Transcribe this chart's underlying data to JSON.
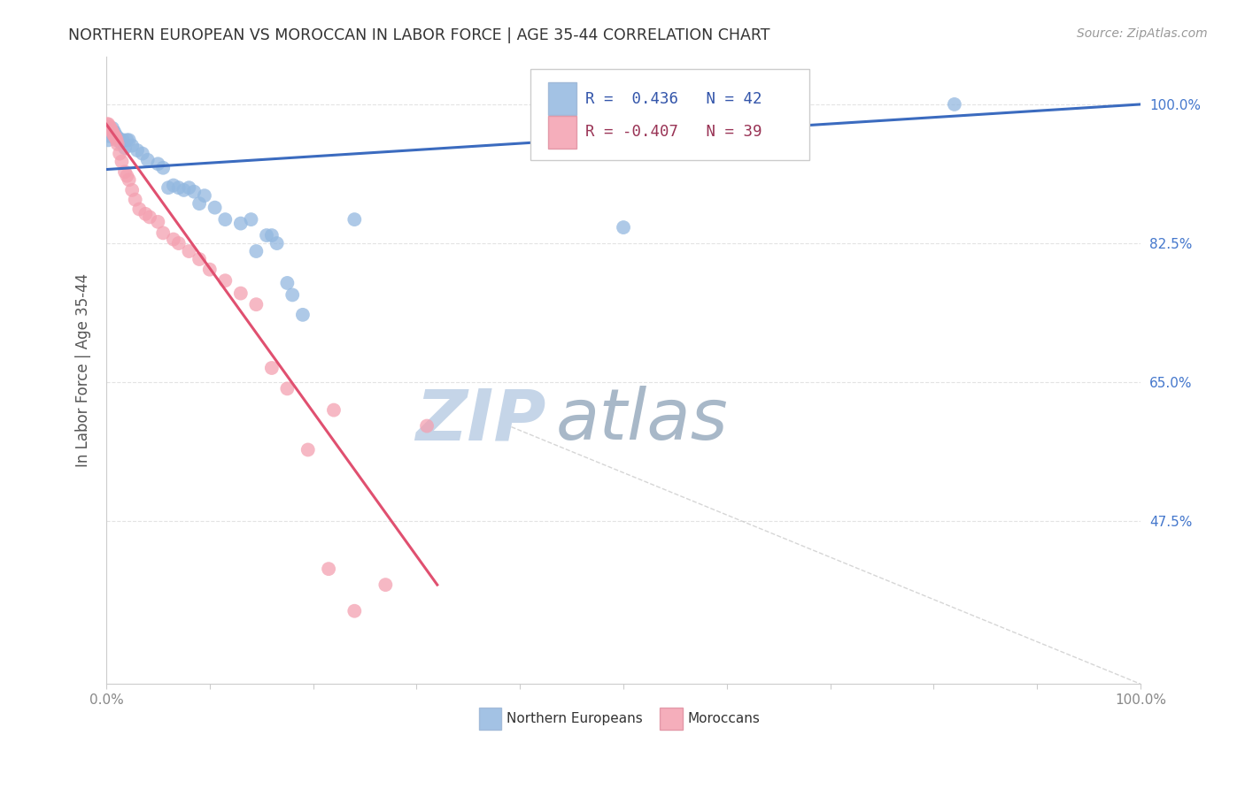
{
  "title": "NORTHERN EUROPEAN VS MOROCCAN IN LABOR FORCE | AGE 35-44 CORRELATION CHART",
  "source_text": "Source: ZipAtlas.com",
  "ylabel": "In Labor Force | Age 35-44",
  "r_blue": 0.436,
  "n_blue": 42,
  "r_pink": -0.407,
  "n_pink": 39,
  "blue_color": "#93B8E0",
  "pink_color": "#F4A0B0",
  "blue_line_color": "#3B6BBF",
  "pink_line_color": "#E05070",
  "axis_label_color": "#555555",
  "tick_color_right": "#4477CC",
  "grid_color": "#DDDDDD",
  "watermark_zip_color": "#C8D8EE",
  "watermark_atlas_color": "#AABBCC",
  "xlim": [
    0.0,
    1.0
  ],
  "ylim": [
    0.27,
    1.06
  ],
  "yticks": [
    0.475,
    0.65,
    0.825,
    1.0
  ],
  "ytick_labels": [
    "47.5%",
    "65.0%",
    "82.5%",
    "100.0%"
  ],
  "xtick_labels": [
    "0.0%",
    "",
    "",
    "",
    "",
    "",
    "",
    "",
    "",
    "",
    "100.0%"
  ],
  "blue_trend_x": [
    0.0,
    1.0
  ],
  "blue_trend_y": [
    0.918,
    1.0
  ],
  "pink_trend_x": [
    0.0,
    0.32
  ],
  "pink_trend_y": [
    0.975,
    0.395
  ],
  "dash_line_x": [
    0.38,
    1.0
  ],
  "dash_line_y": [
    0.6,
    0.27
  ],
  "blue_x": [
    0.002,
    0.003,
    0.004,
    0.005,
    0.006,
    0.007,
    0.008,
    0.01,
    0.012,
    0.014,
    0.016,
    0.018,
    0.02,
    0.022,
    0.025,
    0.03,
    0.035,
    0.04,
    0.05,
    0.055,
    0.06,
    0.065,
    0.07,
    0.075,
    0.08,
    0.085,
    0.09,
    0.095,
    0.105,
    0.115,
    0.13,
    0.14,
    0.145,
    0.155,
    0.16,
    0.165,
    0.175,
    0.18,
    0.19,
    0.24,
    0.5,
    0.82
  ],
  "blue_y": [
    0.955,
    0.96,
    0.965,
    0.965,
    0.97,
    0.965,
    0.965,
    0.96,
    0.957,
    0.952,
    0.955,
    0.945,
    0.955,
    0.955,
    0.948,
    0.942,
    0.938,
    0.93,
    0.925,
    0.92,
    0.895,
    0.898,
    0.895,
    0.892,
    0.895,
    0.89,
    0.875,
    0.885,
    0.87,
    0.855,
    0.85,
    0.855,
    0.815,
    0.835,
    0.835,
    0.825,
    0.775,
    0.76,
    0.735,
    0.855,
    0.845,
    1.0
  ],
  "pink_x": [
    0.001,
    0.002,
    0.003,
    0.004,
    0.005,
    0.006,
    0.007,
    0.008,
    0.009,
    0.01,
    0.011,
    0.013,
    0.015,
    0.018,
    0.02,
    0.022,
    0.025,
    0.028,
    0.032,
    0.038,
    0.042,
    0.05,
    0.055,
    0.065,
    0.07,
    0.08,
    0.09,
    0.1,
    0.115,
    0.13,
    0.145,
    0.16,
    0.175,
    0.195,
    0.215,
    0.24,
    0.27,
    0.31,
    0.22
  ],
  "pink_y": [
    0.975,
    0.975,
    0.972,
    0.97,
    0.968,
    0.965,
    0.962,
    0.96,
    0.958,
    0.955,
    0.95,
    0.938,
    0.928,
    0.915,
    0.91,
    0.905,
    0.892,
    0.88,
    0.868,
    0.862,
    0.858,
    0.852,
    0.838,
    0.83,
    0.825,
    0.815,
    0.805,
    0.792,
    0.778,
    0.762,
    0.748,
    0.668,
    0.642,
    0.565,
    0.415,
    0.362,
    0.395,
    0.595,
    0.615
  ]
}
